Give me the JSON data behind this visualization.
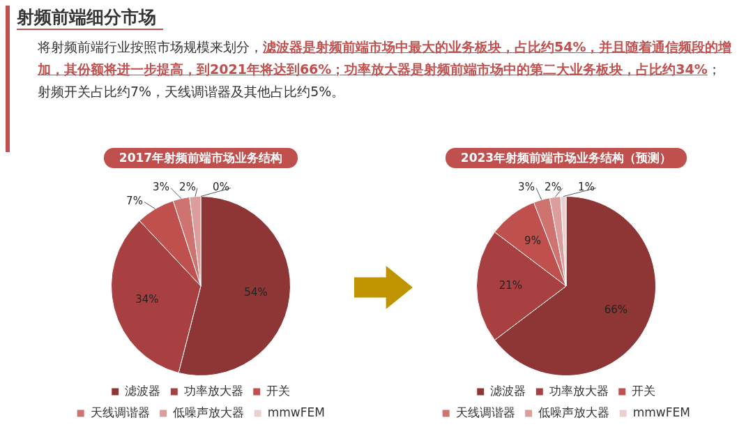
{
  "chart_data": [
    {
      "type": "other",
      "title": "射频前端细分市场",
      "annotations": [
        "将射频前端行业按照市场规模来划分，",
        "滤波器是射频前端市场中最大的业务板块，占比约54%，并且随着通信频段的增加，其份额将进一步提高，到2021年将达到66%；功率放大器是射频前端市场中的第二大业务板块，占比约34%",
        "；射频开关占比约7%，天线调谐器及其他占比约5%。"
      ]
    },
    {
      "type": "pie",
      "title": "2017年射频前端市场业务结构",
      "categories": [
        "滤波器",
        "功率放大器",
        "开关",
        "天线调谐器",
        "低噪声放大器",
        "mmwFEM"
      ],
      "values": [
        54,
        34,
        7,
        3,
        2,
        0
      ],
      "value_labels": [
        "54%",
        "34%",
        "7%",
        "3%",
        "2%",
        "0%"
      ],
      "colors": [
        "#8e3536",
        "#a84042",
        "#c0504d",
        "#cf7371",
        "#dc9e9c",
        "#ead0cf"
      ],
      "legend": "bottom"
    },
    {
      "type": "pie",
      "title": "2023年射频前端市场业务结构（预测）",
      "categories": [
        "滤波器",
        "功率放大器",
        "开关",
        "天线调谐器",
        "低噪声放大器",
        "mmwFEM"
      ],
      "values": [
        66,
        21,
        9,
        3,
        2,
        1
      ],
      "value_labels": [
        "66%",
        "21%",
        "9%",
        "3%",
        "2%",
        "1%"
      ],
      "colors": [
        "#8e3536",
        "#a84042",
        "#c0504d",
        "#cf7371",
        "#dc9e9c",
        "#ead0cf"
      ],
      "legend": "bottom"
    }
  ]
}
